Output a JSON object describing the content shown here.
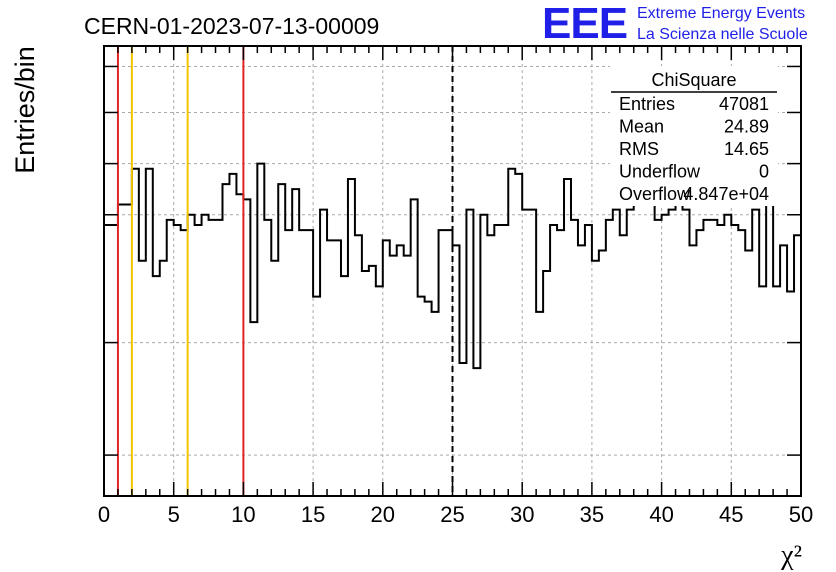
{
  "header": {
    "run_id": "CERN-01-2023-07-13-00009",
    "logo": {
      "mark": "EEE",
      "line1": "Extreme Energy Events",
      "line2": "La Scienza nelle Scuole",
      "color": "#1f1fe8"
    }
  },
  "stats_box": {
    "title": "ChiSquare",
    "rows": [
      {
        "label": "Entries",
        "value": "47081"
      },
      {
        "label": "Mean",
        "value": "24.89"
      },
      {
        "label": "RMS",
        "value": "14.65"
      },
      {
        "label": "Underflow",
        "value": "0"
      },
      {
        "label": "Overflow",
        "value": "4.847e+04"
      }
    ]
  },
  "chart_data": {
    "type": "histogram",
    "title": "CERN-01-2023-07-13-00009",
    "xlabel": "χ²",
    "ylabel": "Entries/bin",
    "xlim": [
      0,
      50
    ],
    "ylim": [
      0,
      88
    ],
    "x_ticks": [
      0,
      5,
      10,
      15,
      20,
      25,
      30,
      35,
      40,
      45,
      50
    ],
    "y_tick_labels_shown": false,
    "grid": true,
    "bin_width": 0.5,
    "bin_values": [
      53,
      53,
      57,
      57,
      64,
      46,
      64,
      43,
      46,
      54,
      53,
      52,
      55,
      53,
      55,
      54,
      54,
      61,
      63,
      59,
      58,
      34,
      65,
      54,
      46,
      61,
      52,
      60,
      52,
      52,
      39,
      56,
      50,
      50,
      43,
      62,
      51,
      44,
      45,
      41,
      50,
      47,
      49,
      47,
      58,
      39,
      38,
      36,
      52,
      52,
      49,
      26,
      56,
      25,
      55,
      51,
      53,
      53,
      64,
      63,
      56,
      56,
      36,
      44,
      53,
      52,
      62,
      54,
      49,
      53,
      46,
      48,
      54,
      56,
      51,
      56,
      59,
      58,
      64,
      54,
      55,
      56,
      61,
      56,
      49,
      52,
      54,
      54,
      53,
      55,
      53,
      52,
      48,
      56,
      41,
      60,
      41,
      49,
      40,
      51
    ],
    "reference_lines": [
      {
        "x": 1,
        "color": "#e02424"
      },
      {
        "x": 2,
        "color": "#f5c400"
      },
      {
        "x": 6,
        "color": "#f5c400"
      },
      {
        "x": 10,
        "color": "#e02424"
      },
      {
        "x": 25,
        "color": "#000000",
        "style": "dashed"
      }
    ],
    "colors": {
      "histogram": "#000000",
      "grid": "#aaaaaa"
    }
  }
}
